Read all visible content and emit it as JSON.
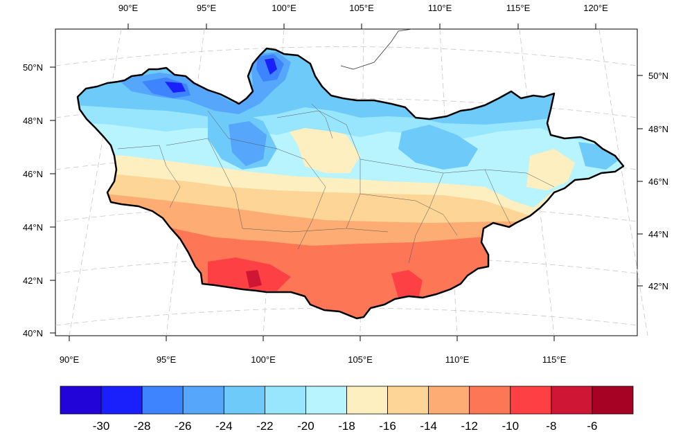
{
  "map": {
    "top_lon_labels": [
      "90°E",
      "95°E",
      "100°E",
      "105°E",
      "110°E",
      "115°E",
      "120°E"
    ],
    "bottom_lon_labels": [
      "90°E",
      "95°E",
      "100°E",
      "105°E",
      "110°E",
      "115°E"
    ],
    "left_lat_labels": [
      "50°N",
      "48°N",
      "46°N",
      "44°N",
      "42°N",
      "40°N"
    ],
    "right_lat_labels": [
      "50°N",
      "48°N",
      "46°N",
      "44°N",
      "42°N"
    ],
    "region_boundary_color": "#000000",
    "graticule_color": "#bdbdbd",
    "gradient": "colder (blue) in the northwest and north, warmer (red) in the south and southwest"
  },
  "colorbar": {
    "colors": [
      "#2203d8",
      "#1a20fb",
      "#3e84fe",
      "#56a6fc",
      "#6ecaf9",
      "#98e6fd",
      "#b7f4fd",
      "#fdefbf",
      "#fdd596",
      "#fdad73",
      "#fd7656",
      "#fd4044",
      "#d01635",
      "#a50224"
    ],
    "labels": [
      "-30",
      "-28",
      "-26",
      "-24",
      "-22",
      "-20",
      "-18",
      "-16",
      "-14",
      "-12",
      "-10",
      "-8",
      "-6"
    ]
  }
}
